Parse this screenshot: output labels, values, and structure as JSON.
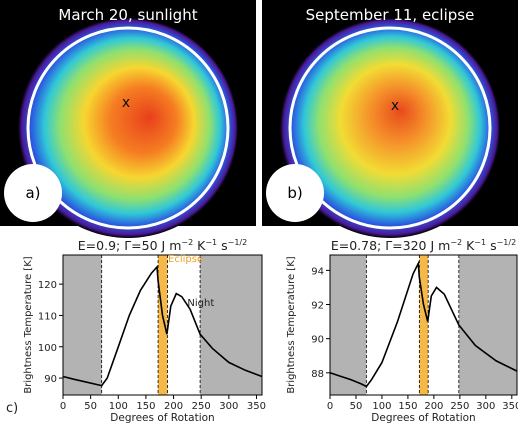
{
  "panels": [
    {
      "title": "March 20, sunlight",
      "label": "a)",
      "marker": "x"
    },
    {
      "title": "September 11, eclipse",
      "label": "b)",
      "marker": "x"
    }
  ],
  "figure_label": "c)",
  "chart_data": [
    {
      "type": "line",
      "title_parts": [
        "E=0.9; Γ=50 J m",
        "−2",
        " K",
        "−1",
        " s",
        "−1/2"
      ],
      "xlabel": "Degrees of Rotation",
      "ylabel": "Brightness Temperature [K]",
      "x": [
        0,
        20,
        40,
        60,
        70,
        80,
        100,
        120,
        140,
        160,
        170,
        172,
        180,
        188,
        195,
        205,
        215,
        230,
        248,
        270,
        300,
        330,
        360
      ],
      "values": [
        90.5,
        89.6,
        88.8,
        88,
        87.6,
        90,
        100,
        110,
        118,
        123.5,
        125.5,
        121,
        110,
        104,
        113,
        117,
        116,
        112,
        104,
        99.5,
        95,
        92.5,
        90.5
      ],
      "color": "#000000",
      "xlim": [
        0,
        360
      ],
      "ylim": [
        84.6,
        129.3
      ],
      "xticks": [
        0,
        50,
        100,
        150,
        200,
        250,
        300,
        350
      ],
      "yticks": [
        90,
        100,
        110,
        120
      ],
      "night_spans": [
        [
          0,
          70
        ],
        [
          248,
          360
        ]
      ],
      "eclipse_span": [
        172,
        189
      ],
      "night_color": "#b3b3b3",
      "eclipse_color": "#f5b94a",
      "annotations": [
        {
          "text": "Eclipse",
          "x": 190,
          "y": 127,
          "color": "#f0a020"
        },
        {
          "text": "Night",
          "x": 225,
          "y": 113,
          "color": "#222222"
        }
      ]
    },
    {
      "type": "line",
      "title_parts": [
        "E=0.78; Γ=320 J m",
        "−2",
        " K",
        "−1",
        " s",
        "−1/2"
      ],
      "xlabel": "Degrees of Rotation",
      "ylabel": "Brightness Temperature [K]",
      "x": [
        0,
        20,
        40,
        60,
        70,
        80,
        100,
        130,
        160,
        170,
        172,
        180,
        188,
        195,
        205,
        220,
        248,
        280,
        320,
        360
      ],
      "values": [
        88,
        87.8,
        87.6,
        87.35,
        87.2,
        87.6,
        88.6,
        91,
        93.8,
        94.4,
        93.6,
        92,
        91,
        92.5,
        93,
        92.6,
        90.8,
        89.6,
        88.7,
        88.1
      ],
      "color": "#000000",
      "xlim": [
        0,
        360
      ],
      "ylim": [
        86.7,
        94.9
      ],
      "xticks": [
        0,
        50,
        100,
        150,
        200,
        250,
        300,
        350
      ],
      "yticks": [
        88,
        90,
        92,
        94
      ],
      "night_spans": [
        [
          0,
          70
        ],
        [
          248,
          360
        ]
      ],
      "eclipse_span": [
        172,
        189
      ],
      "night_color": "#b3b3b3",
      "eclipse_color": "#f5b94a",
      "annotations": []
    }
  ]
}
